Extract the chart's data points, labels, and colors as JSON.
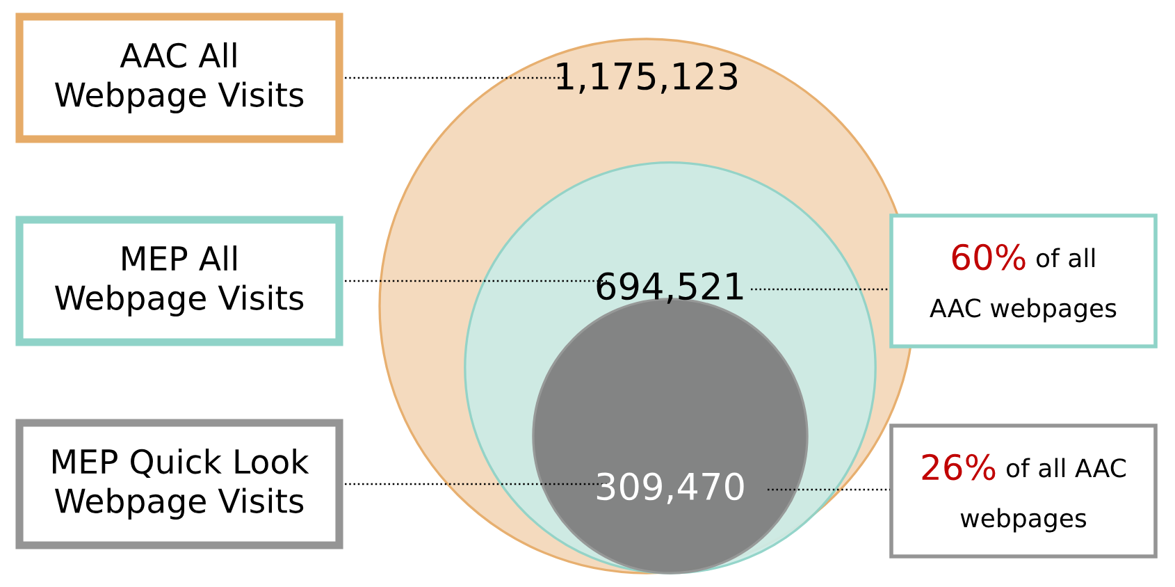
{
  "chart_data": {
    "type": "other",
    "categories": [
      "AAC All\nWebpage Visits",
      "MEP All\nWebpage Visits",
      "MEP Quick Look\nWebpage Visits"
    ],
    "values": [
      1175123,
      694521,
      309470
    ],
    "value_labels": [
      "1,175,123",
      "694,521",
      "309,470"
    ],
    "colors": [
      "#e6ab68",
      "#8fd3c8",
      "#959595"
    ],
    "annotations": [
      "60% of all\nAAC webpages",
      "26% of all AAC\nwebpages"
    ]
  }
}
